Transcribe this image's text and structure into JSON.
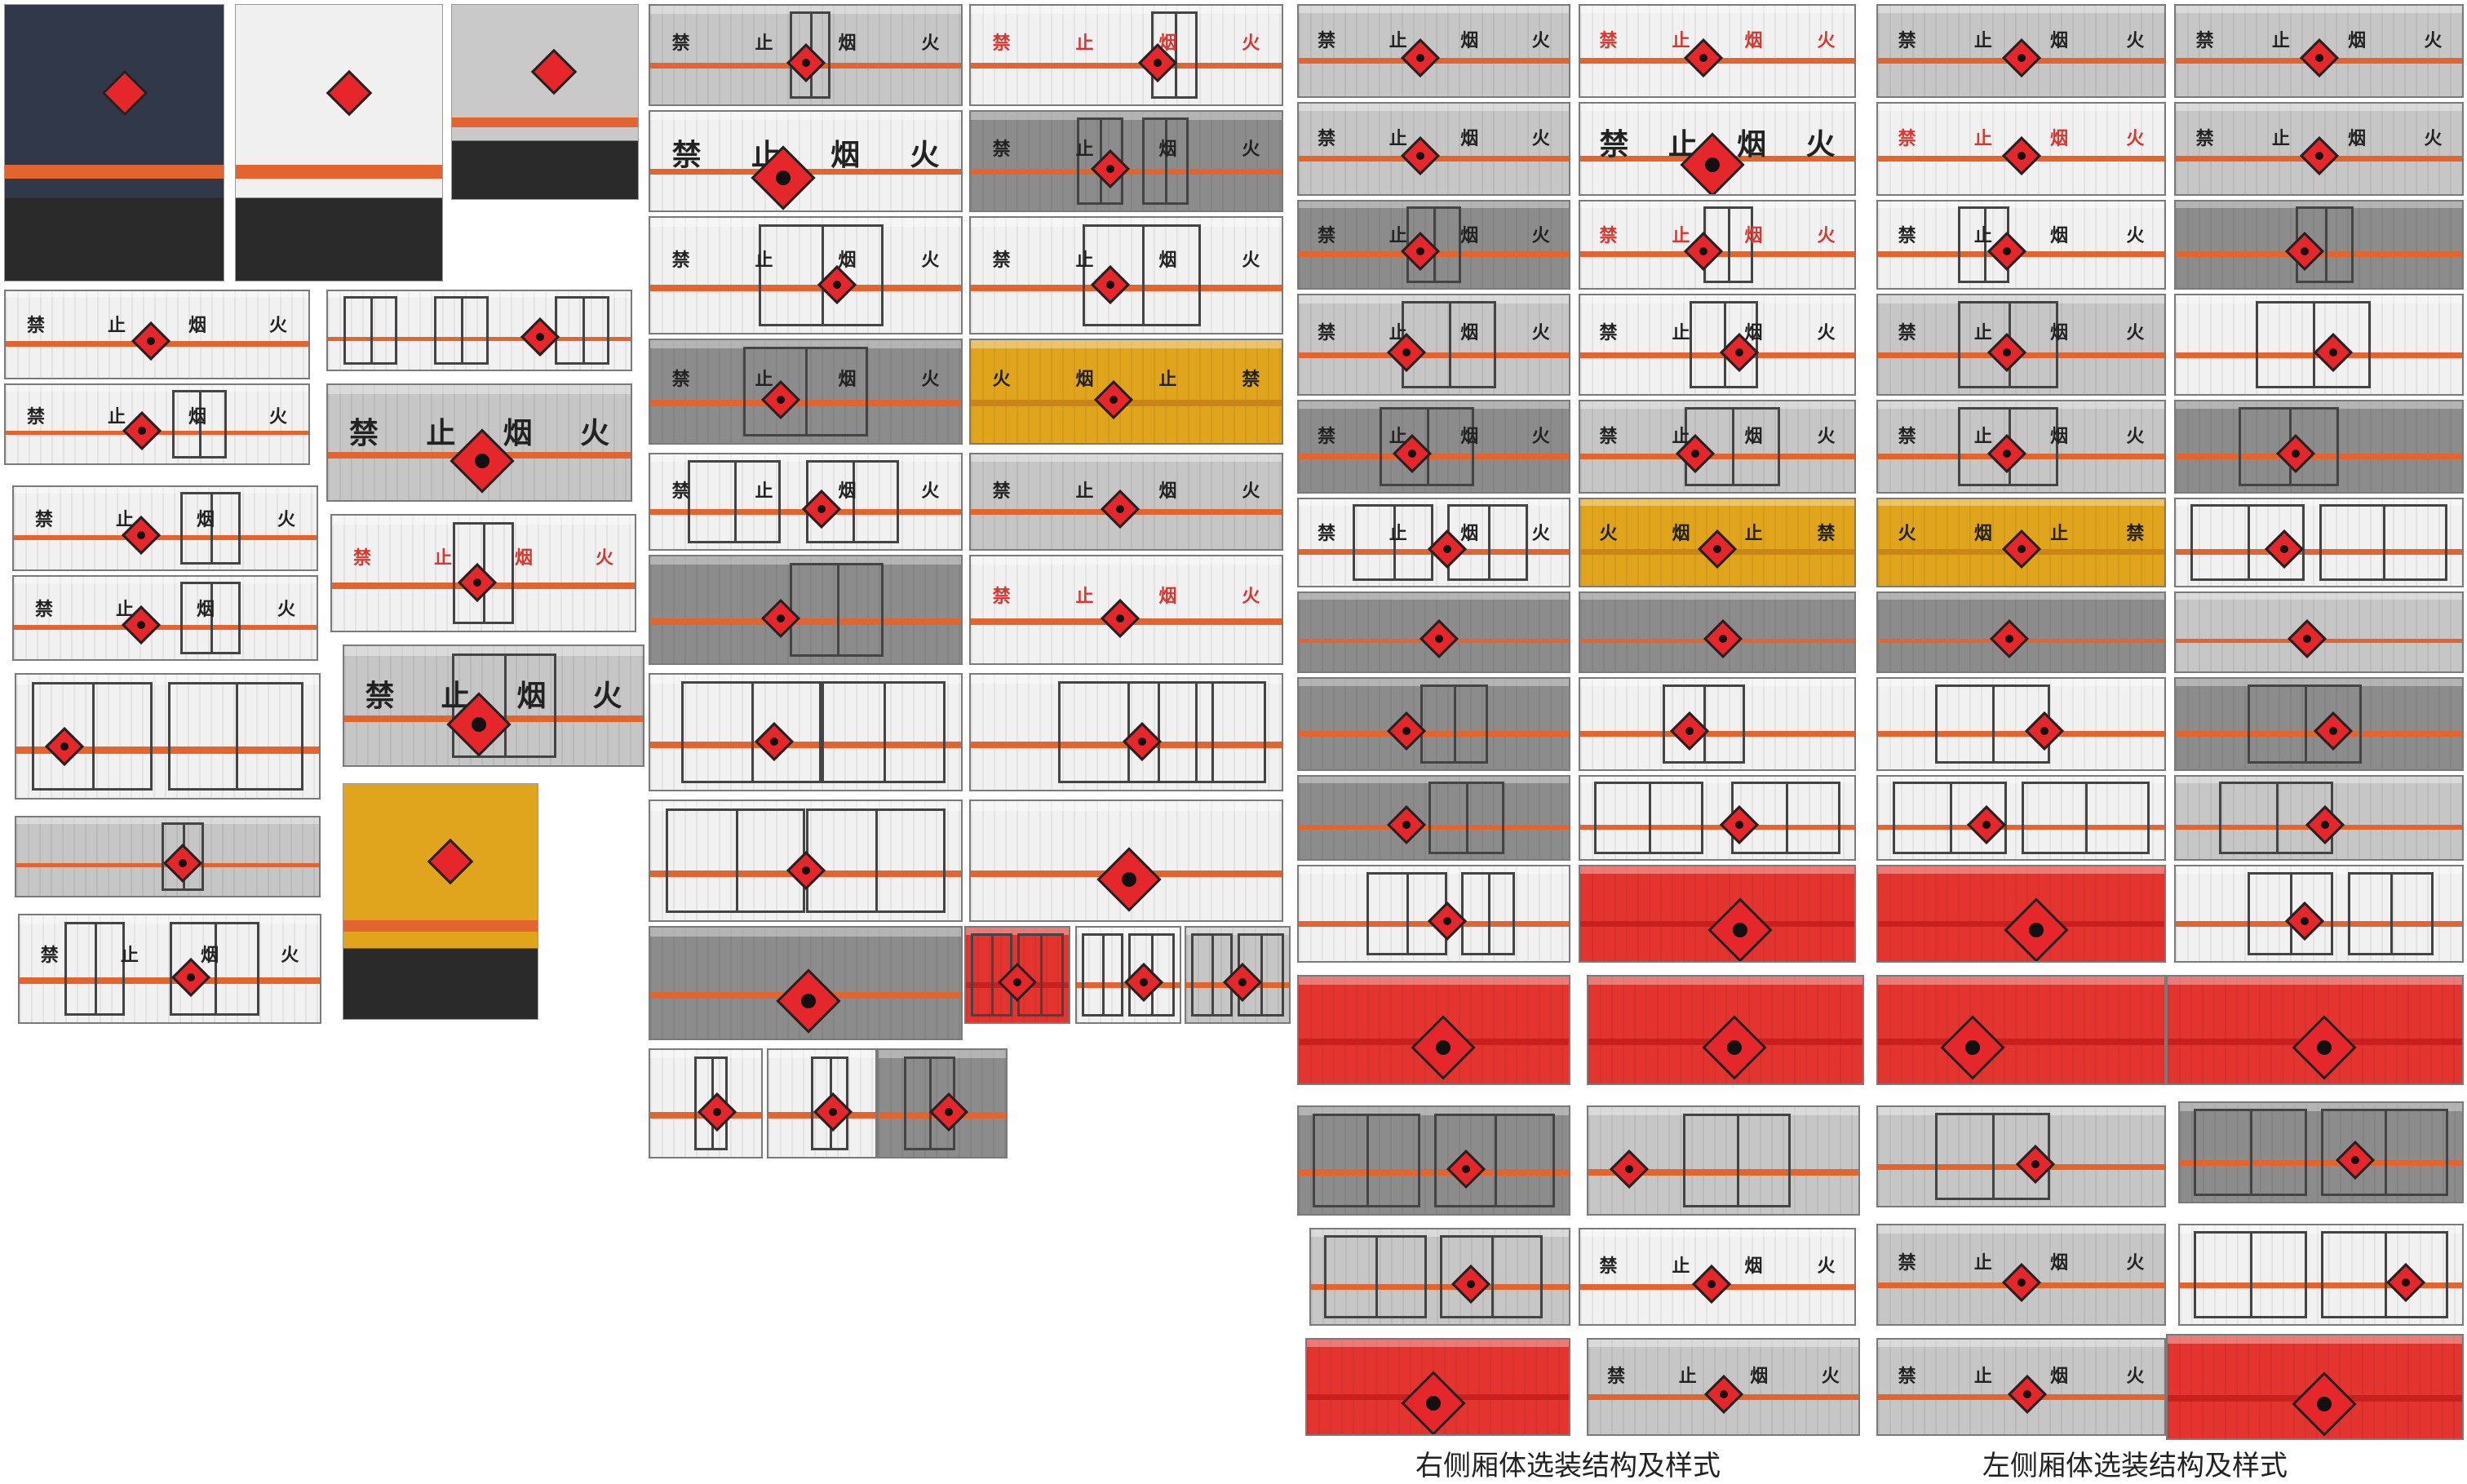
{
  "labels": {
    "no_smoking_seq": [
      "禁",
      "止",
      "烟",
      "火"
    ],
    "no_smoking_rev": [
      "火",
      "烟",
      "止",
      "禁"
    ]
  },
  "captions": {
    "right_side": "右侧厢体选装结构及样式",
    "left_side": "左侧厢体选装结构及样式"
  },
  "colors": {
    "gray_panel": "#c6c6c6",
    "dark_panel": "#8c8c8c",
    "white_panel": "#f1f1f1",
    "red_panel": "#e3342f",
    "yellow_panel": "#e0a51c",
    "stripe_orange": "#e2652f",
    "diamond_red": "#e5262b",
    "text_dark": "#222222",
    "text_red": "#d9362e"
  },
  "icons": {
    "hazard_diamond": "flammable-hazard-diamond-icon",
    "rear_hazard_plate": "hazmat-placard-icon"
  }
}
